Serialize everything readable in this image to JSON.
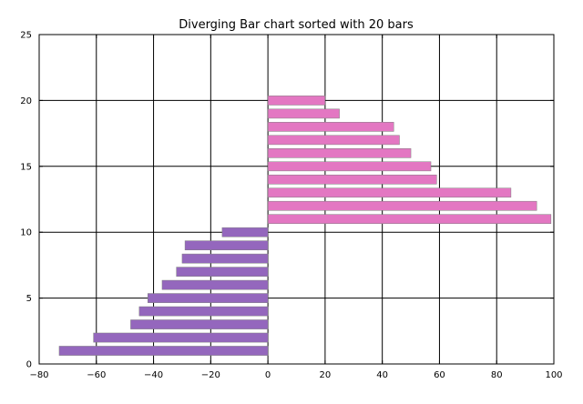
{
  "chart_data": {
    "type": "bar",
    "orientation": "horizontal",
    "title": "Diverging Bar chart sorted with 20 bars",
    "xlabel": "",
    "ylabel": "",
    "xlim": [
      -80,
      100
    ],
    "ylim": [
      0,
      25
    ],
    "xticks": [
      -80,
      -60,
      -40,
      -20,
      0,
      20,
      40,
      60,
      80,
      100
    ],
    "yticks": [
      0,
      5,
      10,
      15,
      20,
      25
    ],
    "grid": true,
    "legend": "none",
    "colors": {
      "positive": "#e377c2",
      "negative": "#9467bd",
      "bar_edge": "#7f7f7f",
      "grid": "#000000"
    },
    "positions": [
      1,
      2,
      3,
      4,
      5,
      6,
      7,
      8,
      9,
      10,
      11,
      12,
      13,
      14,
      15,
      16,
      17,
      18,
      19,
      20
    ],
    "values": [
      -73,
      -61,
      -48,
      -45,
      -42,
      -37,
      -32,
      -30,
      -29,
      -16,
      99,
      94,
      85,
      59,
      57,
      50,
      46,
      44,
      25,
      20
    ]
  }
}
